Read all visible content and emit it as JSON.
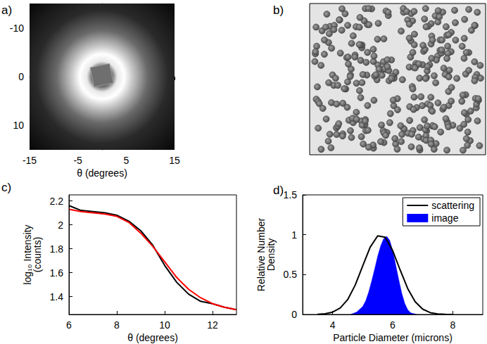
{
  "chart_data": [
    {
      "panel": "a)",
      "type": "image",
      "xlabel": "θ (degrees)",
      "xlim": [
        -15,
        15
      ],
      "xticks": [
        -15,
        -5,
        5,
        15
      ],
      "ylim": [
        -15,
        15
      ],
      "yticks": [
        -10,
        0,
        10
      ],
      "grid": false
    },
    {
      "panel": "b)",
      "type": "image"
    },
    {
      "panel": "c)",
      "type": "line",
      "xlabel": "θ (degrees)",
      "ylabel": "log₁₀ Intensity\n(counts)",
      "x": [
        6,
        6.5,
        7,
        7.5,
        8,
        8.5,
        9,
        9.5,
        10,
        10.5,
        11,
        11.5,
        12,
        12.5,
        13
      ],
      "series": [
        {
          "color": "#000000",
          "values": [
            2.16,
            2.12,
            2.11,
            2.1,
            2.08,
            2.03,
            1.95,
            1.83,
            1.66,
            1.52,
            1.42,
            1.36,
            1.34,
            1.31,
            1.29
          ]
        },
        {
          "color": "#ff0000",
          "values": [
            2.13,
            2.11,
            2.1,
            2.09,
            2.07,
            2.02,
            1.93,
            1.82,
            1.69,
            1.56,
            1.46,
            1.39,
            1.34,
            1.31,
            1.29
          ]
        }
      ],
      "xlim": [
        6,
        13
      ],
      "xticks": [
        6,
        8,
        10,
        12
      ],
      "ylim": [
        1.25,
        2.25
      ],
      "yticks": [
        1.4,
        1.6,
        1.8,
        2,
        2.2
      ],
      "grid": false
    },
    {
      "panel": "d)",
      "type": "line",
      "legend": "upper right",
      "xlabel": "Particle Diameter (microns)",
      "ylabel": "Relative Number\nDensity",
      "series": [
        {
          "name": "scattering",
          "type": "line",
          "color": "#000000",
          "x": [
            3.5,
            3.75,
            4,
            4.25,
            4.5,
            4.75,
            5,
            5.25,
            5.5,
            5.75,
            6,
            6.25,
            6.5,
            6.75,
            7,
            7.25,
            7.5,
            7.75,
            8
          ],
          "values": [
            0.002,
            0.009,
            0.029,
            0.08,
            0.186,
            0.367,
            0.607,
            0.844,
            0.986,
            0.969,
            0.8,
            0.556,
            0.325,
            0.159,
            0.066,
            0.023,
            0.007,
            0.002,
            0
          ]
        },
        {
          "name": "image",
          "type": "area",
          "color": "#0000ff",
          "x": [
            4.6,
            4.8,
            5,
            5.1,
            5.2,
            5.3,
            5.4,
            5.5,
            5.6,
            5.7,
            5.8,
            5.9,
            6,
            6.1,
            6.2,
            6.3,
            6.4,
            6.5,
            6.6,
            6.8
          ],
          "values": [
            0,
            0.03,
            0.1,
            0.17,
            0.28,
            0.42,
            0.57,
            0.73,
            0.86,
            0.95,
            0.98,
            0.93,
            0.8,
            0.62,
            0.44,
            0.27,
            0.14,
            0.06,
            0.02,
            0
          ]
        }
      ],
      "xlim": [
        3,
        9
      ],
      "xticks": [
        4,
        6,
        8
      ],
      "ylim": [
        0,
        1.5
      ],
      "yticks": [
        0,
        0.5,
        1,
        1.5
      ],
      "grid": false
    }
  ]
}
